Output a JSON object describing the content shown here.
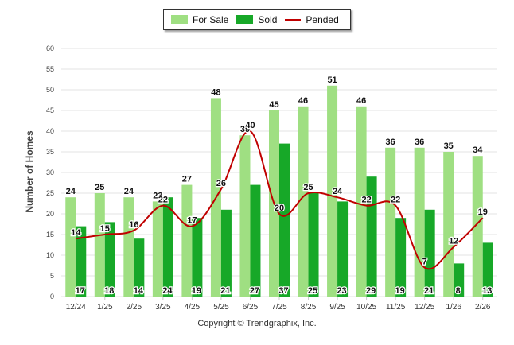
{
  "chart_data": {
    "type": "bar",
    "categories": [
      "12/24",
      "1/25",
      "2/25",
      "3/25",
      "4/25",
      "5/25",
      "6/25",
      "7/25",
      "8/25",
      "9/25",
      "10/25",
      "11/25",
      "12/25",
      "1/26",
      "2/26"
    ],
    "series": [
      {
        "name": "For Sale",
        "kind": "bar",
        "color": "#9fdf82",
        "values": [
          24,
          25,
          24,
          23,
          27,
          48,
          39,
          45,
          46,
          51,
          46,
          36,
          36,
          35,
          34
        ]
      },
      {
        "name": "Sold",
        "kind": "bar",
        "color": "#17a828",
        "values": [
          17,
          18,
          14,
          24,
          19,
          21,
          27,
          37,
          25,
          23,
          29,
          19,
          21,
          8,
          13
        ]
      },
      {
        "name": "Pended",
        "kind": "line",
        "color": "#c00000",
        "values": [
          14,
          15,
          16,
          22,
          17,
          26,
          40,
          20,
          25,
          24,
          22,
          22,
          7,
          12,
          19
        ]
      }
    ],
    "ylabel": "Number of Homes",
    "xlabel": "",
    "ylim": [
      0,
      60
    ],
    "yticks": [
      0,
      5,
      10,
      15,
      20,
      25,
      30,
      35,
      40,
      45,
      50,
      55,
      60
    ],
    "grid": true,
    "legend_position": "top-center"
  },
  "footer": {
    "copyright": "Copyright © Trendgraphix, Inc."
  }
}
